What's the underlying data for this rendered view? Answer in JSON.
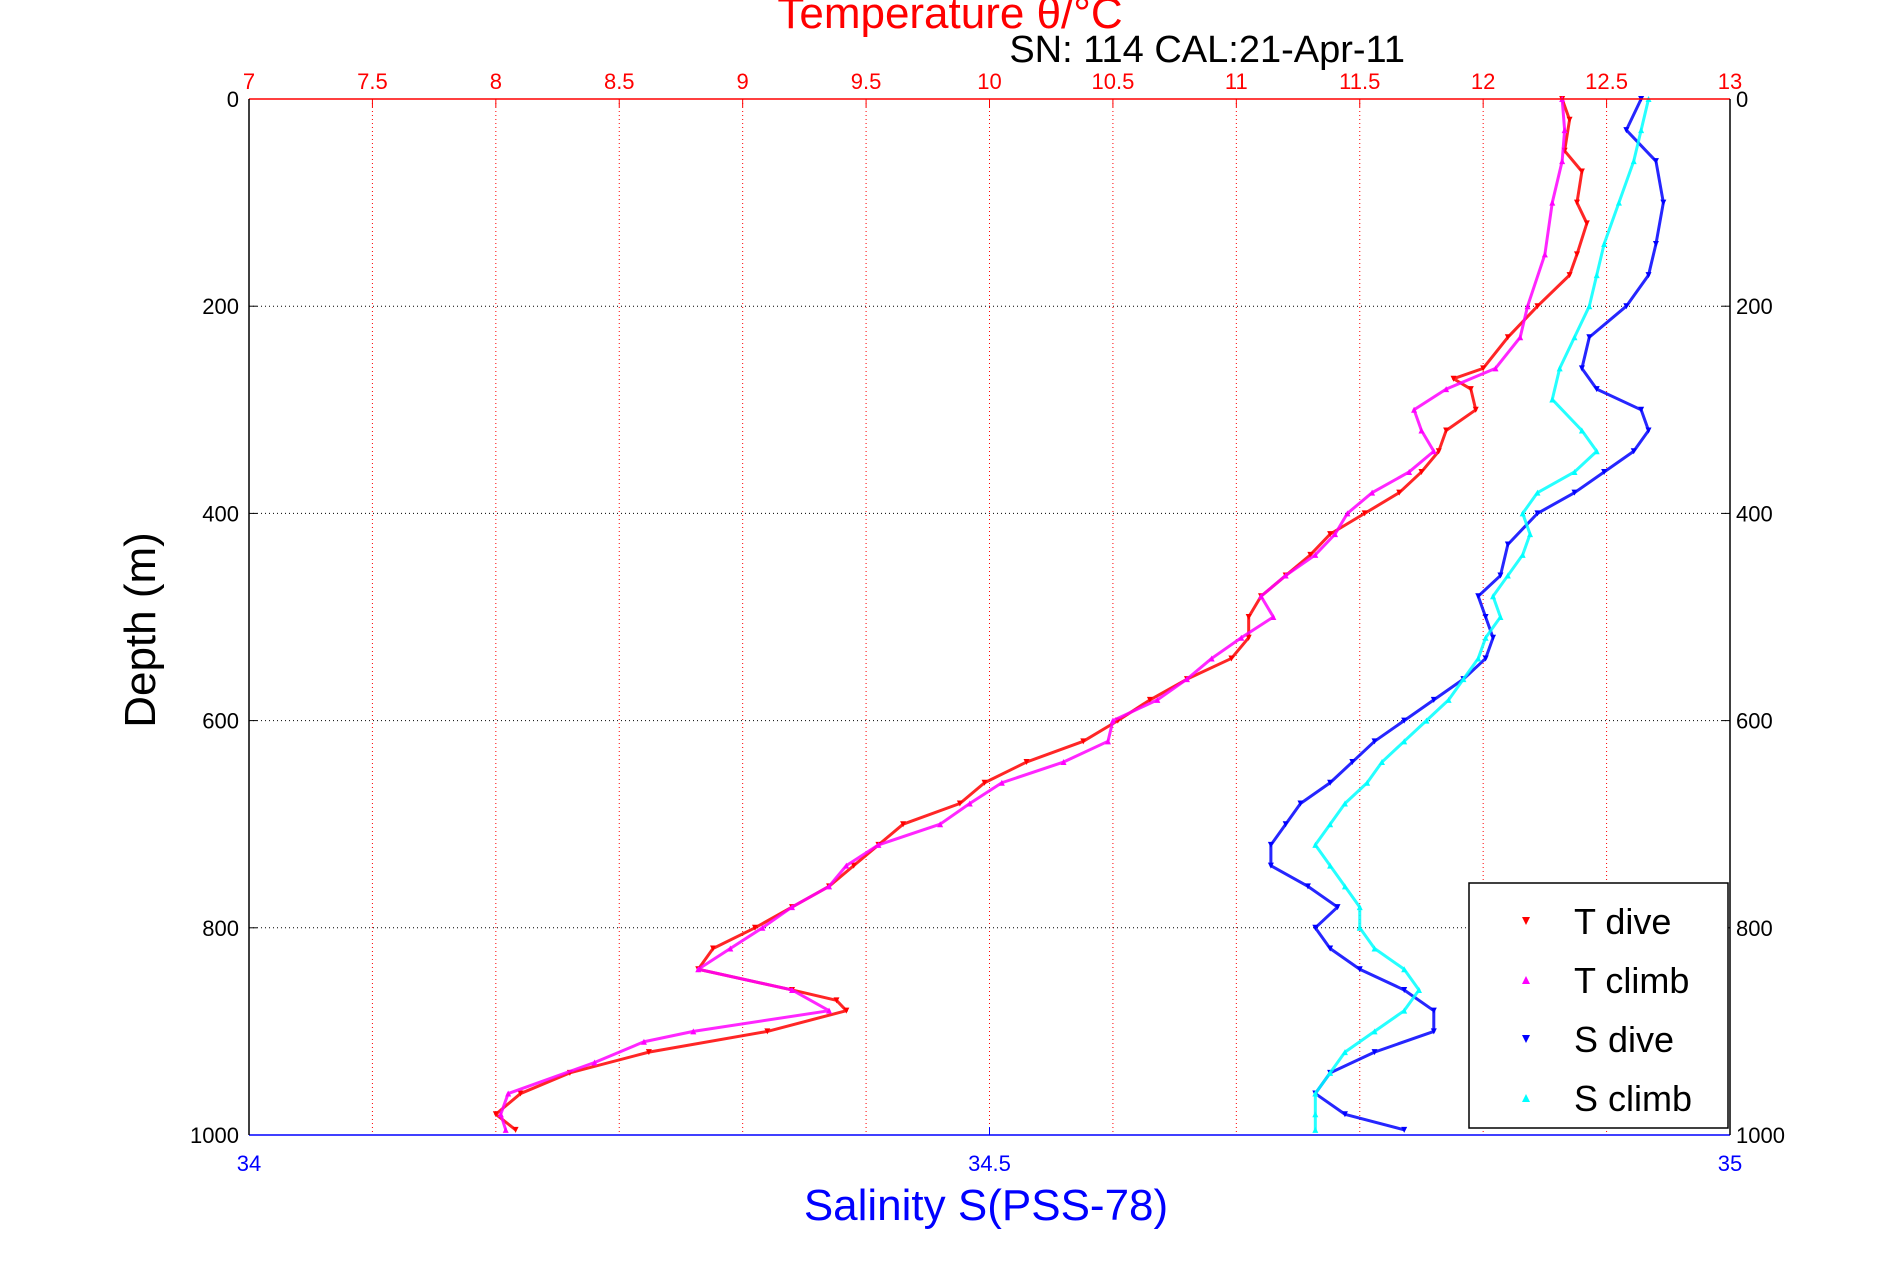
{
  "chart_data": {
    "type": "scatter",
    "title": "Temperature θ/°C",
    "subtitle": "SN: 114  CAL:21-Apr-11",
    "xlabel_bottom": "Salinity S(PSS-78)",
    "ylabel": "Depth (m)",
    "y_axis": {
      "range": [
        0,
        1000
      ],
      "reversed": true,
      "ticks": [
        0,
        200,
        400,
        600,
        800,
        1000
      ]
    },
    "x_axis_top": {
      "quantity": "temperature",
      "range": [
        7,
        13
      ],
      "ticks": [
        7,
        7.5,
        8,
        8.5,
        9,
        9.5,
        10,
        10.5,
        11,
        11.5,
        12,
        12.5,
        13
      ],
      "tick_labels": [
        "7",
        "7.5",
        "8",
        "8.5",
        "9",
        "9.5",
        "10",
        "10.5",
        "11",
        "11.5",
        "12",
        "12.5",
        "13"
      ]
    },
    "x_axis_bottom": {
      "quantity": "salinity",
      "range": [
        34,
        35
      ],
      "ticks": [
        34,
        34.5,
        35
      ],
      "tick_labels": [
        "34",
        "34.5",
        "35"
      ]
    },
    "grid": true,
    "legend_position": "bottom-right",
    "series": [
      {
        "name": "T dive",
        "axis": "temperature",
        "marker": "triangle-down",
        "color": "#ff0000",
        "points": [
          [
            0,
            12.32
          ],
          [
            20,
            12.35
          ],
          [
            50,
            12.33
          ],
          [
            70,
            12.4
          ],
          [
            100,
            12.38
          ],
          [
            120,
            12.42
          ],
          [
            150,
            12.38
          ],
          [
            170,
            12.35
          ],
          [
            200,
            12.22
          ],
          [
            230,
            12.1
          ],
          [
            260,
            12.0
          ],
          [
            270,
            11.88
          ],
          [
            280,
            11.95
          ],
          [
            300,
            11.97
          ],
          [
            320,
            11.85
          ],
          [
            340,
            11.82
          ],
          [
            360,
            11.75
          ],
          [
            380,
            11.66
          ],
          [
            400,
            11.52
          ],
          [
            420,
            11.38
          ],
          [
            440,
            11.3
          ],
          [
            460,
            11.2
          ],
          [
            480,
            11.1
          ],
          [
            500,
            11.05
          ],
          [
            520,
            11.05
          ],
          [
            540,
            10.98
          ],
          [
            560,
            10.8
          ],
          [
            580,
            10.65
          ],
          [
            600,
            10.52
          ],
          [
            620,
            10.38
          ],
          [
            640,
            10.15
          ],
          [
            660,
            9.98
          ],
          [
            680,
            9.88
          ],
          [
            700,
            9.65
          ],
          [
            720,
            9.55
          ],
          [
            740,
            9.45
          ],
          [
            760,
            9.35
          ],
          [
            780,
            9.2
          ],
          [
            800,
            9.05
          ],
          [
            820,
            8.88
          ],
          [
            840,
            8.82
          ],
          [
            860,
            9.2
          ],
          [
            870,
            9.38
          ],
          [
            880,
            9.42
          ],
          [
            900,
            9.1
          ],
          [
            920,
            8.62
          ],
          [
            940,
            8.3
          ],
          [
            960,
            8.1
          ],
          [
            980,
            8.0
          ],
          [
            995,
            8.08
          ]
        ]
      },
      {
        "name": "T climb",
        "axis": "temperature",
        "marker": "triangle-up",
        "color": "#ff00ff",
        "points": [
          [
            0,
            12.32
          ],
          [
            30,
            12.33
          ],
          [
            60,
            12.32
          ],
          [
            100,
            12.28
          ],
          [
            150,
            12.25
          ],
          [
            200,
            12.18
          ],
          [
            230,
            12.15
          ],
          [
            260,
            12.05
          ],
          [
            280,
            11.85
          ],
          [
            300,
            11.72
          ],
          [
            320,
            11.75
          ],
          [
            340,
            11.8
          ],
          [
            360,
            11.7
          ],
          [
            380,
            11.55
          ],
          [
            400,
            11.45
          ],
          [
            420,
            11.4
          ],
          [
            440,
            11.32
          ],
          [
            460,
            11.2
          ],
          [
            480,
            11.1
          ],
          [
            500,
            11.15
          ],
          [
            520,
            11.02
          ],
          [
            540,
            10.9
          ],
          [
            560,
            10.8
          ],
          [
            580,
            10.68
          ],
          [
            600,
            10.5
          ],
          [
            620,
            10.48
          ],
          [
            640,
            10.3
          ],
          [
            660,
            10.05
          ],
          [
            680,
            9.92
          ],
          [
            700,
            9.8
          ],
          [
            720,
            9.55
          ],
          [
            740,
            9.42
          ],
          [
            760,
            9.35
          ],
          [
            780,
            9.2
          ],
          [
            800,
            9.08
          ],
          [
            820,
            8.95
          ],
          [
            840,
            8.82
          ],
          [
            860,
            9.2
          ],
          [
            880,
            9.35
          ],
          [
            900,
            8.8
          ],
          [
            910,
            8.6
          ],
          [
            930,
            8.4
          ],
          [
            960,
            8.05
          ],
          [
            980,
            8.02
          ],
          [
            995,
            8.04
          ]
        ]
      },
      {
        "name": "S dive",
        "axis": "salinity",
        "marker": "triangle-down",
        "color": "#0000ff",
        "points": [
          [
            0,
            34.94
          ],
          [
            30,
            34.93
          ],
          [
            60,
            34.95
          ],
          [
            100,
            34.955
          ],
          [
            140,
            34.95
          ],
          [
            170,
            34.945
          ],
          [
            200,
            34.93
          ],
          [
            230,
            34.905
          ],
          [
            260,
            34.9
          ],
          [
            280,
            34.91
          ],
          [
            300,
            34.94
          ],
          [
            320,
            34.945
          ],
          [
            340,
            34.935
          ],
          [
            360,
            34.915
          ],
          [
            380,
            34.895
          ],
          [
            400,
            34.87
          ],
          [
            430,
            34.85
          ],
          [
            460,
            34.845
          ],
          [
            480,
            34.83
          ],
          [
            500,
            34.835
          ],
          [
            520,
            34.84
          ],
          [
            540,
            34.835
          ],
          [
            560,
            34.82
          ],
          [
            580,
            34.8
          ],
          [
            600,
            34.78
          ],
          [
            620,
            34.76
          ],
          [
            640,
            34.745
          ],
          [
            660,
            34.73
          ],
          [
            680,
            34.71
          ],
          [
            700,
            34.7
          ],
          [
            720,
            34.69
          ],
          [
            740,
            34.69
          ],
          [
            760,
            34.715
          ],
          [
            780,
            34.735
          ],
          [
            800,
            34.72
          ],
          [
            820,
            34.73
          ],
          [
            840,
            34.75
          ],
          [
            860,
            34.78
          ],
          [
            880,
            34.8
          ],
          [
            900,
            34.8
          ],
          [
            920,
            34.76
          ],
          [
            940,
            34.73
          ],
          [
            960,
            34.72
          ],
          [
            980,
            34.74
          ],
          [
            995,
            34.78
          ]
        ]
      },
      {
        "name": "S climb",
        "axis": "salinity",
        "marker": "triangle-up",
        "color": "#00ffff",
        "points": [
          [
            0,
            34.945
          ],
          [
            30,
            34.94
          ],
          [
            60,
            34.935
          ],
          [
            100,
            34.925
          ],
          [
            140,
            34.915
          ],
          [
            170,
            34.91
          ],
          [
            200,
            34.905
          ],
          [
            230,
            34.895
          ],
          [
            260,
            34.885
          ],
          [
            290,
            34.88
          ],
          [
            320,
            34.9
          ],
          [
            340,
            34.91
          ],
          [
            360,
            34.895
          ],
          [
            380,
            34.87
          ],
          [
            400,
            34.86
          ],
          [
            420,
            34.865
          ],
          [
            440,
            34.86
          ],
          [
            460,
            34.85
          ],
          [
            480,
            34.84
          ],
          [
            500,
            34.845
          ],
          [
            520,
            34.835
          ],
          [
            540,
            34.83
          ],
          [
            560,
            34.82
          ],
          [
            580,
            34.81
          ],
          [
            600,
            34.795
          ],
          [
            620,
            34.78
          ],
          [
            640,
            34.765
          ],
          [
            660,
            34.755
          ],
          [
            680,
            34.74
          ],
          [
            700,
            34.73
          ],
          [
            720,
            34.72
          ],
          [
            740,
            34.73
          ],
          [
            760,
            34.74
          ],
          [
            780,
            34.75
          ],
          [
            800,
            34.75
          ],
          [
            820,
            34.76
          ],
          [
            840,
            34.78
          ],
          [
            860,
            34.79
          ],
          [
            880,
            34.78
          ],
          [
            900,
            34.76
          ],
          [
            920,
            34.74
          ],
          [
            940,
            34.73
          ],
          [
            960,
            34.72
          ],
          [
            980,
            34.72
          ],
          [
            995,
            34.72
          ]
        ]
      }
    ]
  }
}
